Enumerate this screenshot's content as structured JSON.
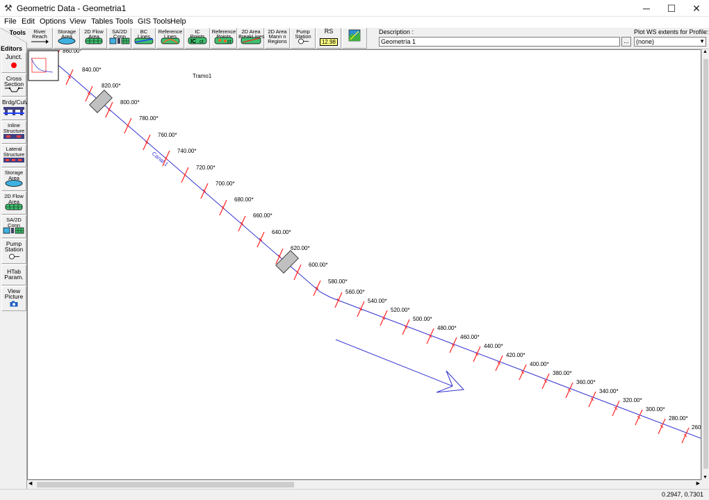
{
  "window": {
    "title": "Geometric Data - Geometria1",
    "icon": "hec-ras-icon"
  },
  "menu": [
    "File",
    "Edit",
    "Options",
    "View",
    "Tables",
    "Tools",
    "GIS Tools",
    "Help"
  ],
  "toolbar": {
    "buttons": [
      {
        "label": "River\nReach",
        "icon": "river-reach-icon"
      },
      {
        "label": "Storage\nArea",
        "icon": "storage-area-icon"
      },
      {
        "label": "2D Flow\nArea",
        "icon": "2d-flow-area-icon"
      },
      {
        "label": "SA/2D\nConn",
        "icon": "sa-2d-conn-icon"
      },
      {
        "label": "BC\nLines",
        "icon": "bc-lines-icon"
      },
      {
        "label": "Reference\nLines",
        "icon": "reference-lines-icon"
      },
      {
        "label": "IC\nPoints",
        "icon": "ic-points-icon"
      },
      {
        "label": "Reference\nPoints",
        "icon": "reference-points-icon"
      },
      {
        "label": "2D Area\nBreakLines",
        "icon": "breaklines-icon"
      },
      {
        "label": "2D Area\nMann n\nRegions",
        "icon": "mann-n-regions-icon"
      },
      {
        "label": "Pump\nStation",
        "icon": "pump-station-icon"
      },
      {
        "label": "RS",
        "icon": "rs-icon",
        "value": "12.98"
      },
      {
        "label": "",
        "icon": "map-icon"
      }
    ],
    "description_label": "Description :",
    "description_value": "Geometría 1",
    "description_button": "...",
    "plot_ws_label": "Plot WS extents for Profile:",
    "plot_ws_value": "(none)"
  },
  "sidebar": {
    "tools_tab": "Tools",
    "editors_label": "Editors",
    "items": [
      {
        "label": "Junct.",
        "icon": "junction-icon"
      },
      {
        "label": "Cross\nSection",
        "icon": "cross-section-icon"
      },
      {
        "label": "Brdg/Culv",
        "icon": "bridge-culvert-icon"
      },
      {
        "label": "Inline\nStructure",
        "icon": "inline-structure-icon"
      },
      {
        "label": "Lateral\nStructure",
        "icon": "lateral-structure-icon"
      },
      {
        "label": "Storage\nArea",
        "icon": "storage-area-icon"
      },
      {
        "label": "2D Flow\nArea",
        "icon": "2d-flow-area-icon"
      },
      {
        "label": "SA/2D\nConn",
        "icon": "sa-2d-conn-icon"
      },
      {
        "label": "Pump\nStation",
        "icon": "pump-station-icon"
      },
      {
        "label": "HTab\nParam.",
        "icon": ""
      },
      {
        "label": "View\nPicture",
        "icon": "camera-icon"
      }
    ]
  },
  "canvas": {
    "reach_label": "Tramo1",
    "river_label": "Canal 1",
    "cross_sections": [
      "860.00*",
      "840.00*",
      "820.00*",
      "800.00*",
      "780.00*",
      "760.00*",
      "740.00*",
      "720.00*",
      "700.00*",
      "680.00*",
      "660.00*",
      "640.00*",
      "620.00*",
      "600.00*",
      "580.00*",
      "560.00*",
      "540.00*",
      "520.00*",
      "500.00*",
      "480.00*",
      "460.00*",
      "440.00*",
      "420.00*",
      "400.00*",
      "380.00*",
      "360.00*",
      "340.00*",
      "320.00*",
      "300.00*",
      "280.00*",
      "260"
    ],
    "colors": {
      "river": "#3030d0",
      "cross_section": "#ff2020",
      "structure": "#c0c0c0",
      "flow_arrow": "#3030d0"
    }
  },
  "status": {
    "coords": "0.2947, 0.7301"
  }
}
